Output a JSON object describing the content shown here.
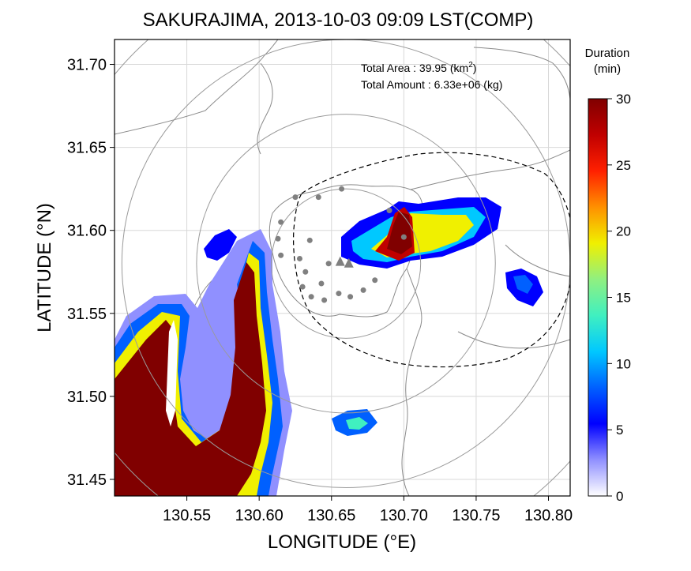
{
  "chart_data": {
    "type": "heatmap",
    "title": "SAKURAJIMA, 2013-10-03 09:09 LST(COMP)",
    "xlabel": "LONGITUDE (°E)",
    "ylabel": "LATITUDE (°N)",
    "xlim": [
      130.5,
      130.815
    ],
    "ylim": [
      31.44,
      31.715
    ],
    "x_ticks": [
      "130.55",
      "130.60",
      "130.65",
      "130.70",
      "130.75",
      "130.80"
    ],
    "x_tick_values": [
      130.55,
      130.6,
      130.65,
      130.7,
      130.75,
      130.8
    ],
    "y_ticks": [
      "31.45",
      "31.50",
      "31.55",
      "31.60",
      "31.65",
      "31.70"
    ],
    "y_tick_values": [
      31.45,
      31.5,
      31.55,
      31.6,
      31.65,
      31.7
    ],
    "grid": true,
    "colorbar": {
      "title_line1": "Duration",
      "title_line2": "(min)",
      "min": 0,
      "max": 30,
      "tick_labels": [
        "0",
        "5",
        "10",
        "15",
        "20",
        "25",
        "30"
      ],
      "tick_values": [
        0,
        5,
        10,
        15,
        20,
        25,
        30
      ],
      "colors": [
        "#ffffff",
        "#9090ff",
        "#0000ff",
        "#0060ff",
        "#00c8ff",
        "#40f0c0",
        "#90f080",
        "#f0f000",
        "#ff9000",
        "#ff2000",
        "#c00000",
        "#800000"
      ]
    },
    "annotations": {
      "area_label": "Total Area   : 39.95 (km",
      "area_sup": "2",
      "area_close": ")",
      "amount_label": "Total Amount : 6.33e+06 (kg)"
    },
    "range_rings": {
      "center": [
        130.66,
        31.58
      ],
      "radii_deg_lat": [
        0.045,
        0.09,
        0.135,
        0.18
      ]
    },
    "sites": [
      [
        130.625,
        31.62
      ],
      [
        130.641,
        31.62
      ],
      [
        130.657,
        31.625
      ],
      [
        130.615,
        31.605
      ],
      [
        130.613,
        31.595
      ],
      [
        130.635,
        31.594
      ],
      [
        130.615,
        31.585
      ],
      [
        130.628,
        31.583
      ],
      [
        130.632,
        31.575
      ],
      [
        130.648,
        31.58
      ],
      [
        130.63,
        31.566
      ],
      [
        130.643,
        31.568
      ],
      [
        130.636,
        31.56
      ],
      [
        130.645,
        31.558
      ],
      [
        130.655,
        31.562
      ],
      [
        130.663,
        31.56
      ],
      [
        130.672,
        31.564
      ],
      [
        130.68,
        31.57
      ],
      [
        130.69,
        31.612
      ],
      [
        130.7,
        31.596
      ]
    ],
    "vents": [
      [
        130.656,
        31.581
      ],
      [
        130.662,
        31.58
      ]
    ],
    "ash_regions": [
      {
        "name": "southwest plume",
        "peak_duration": 30
      },
      {
        "name": "east plume",
        "peak_duration": 30
      },
      {
        "name": "far east patch",
        "peak_duration": 8
      },
      {
        "name": "south patch",
        "peak_duration": 12
      }
    ]
  }
}
